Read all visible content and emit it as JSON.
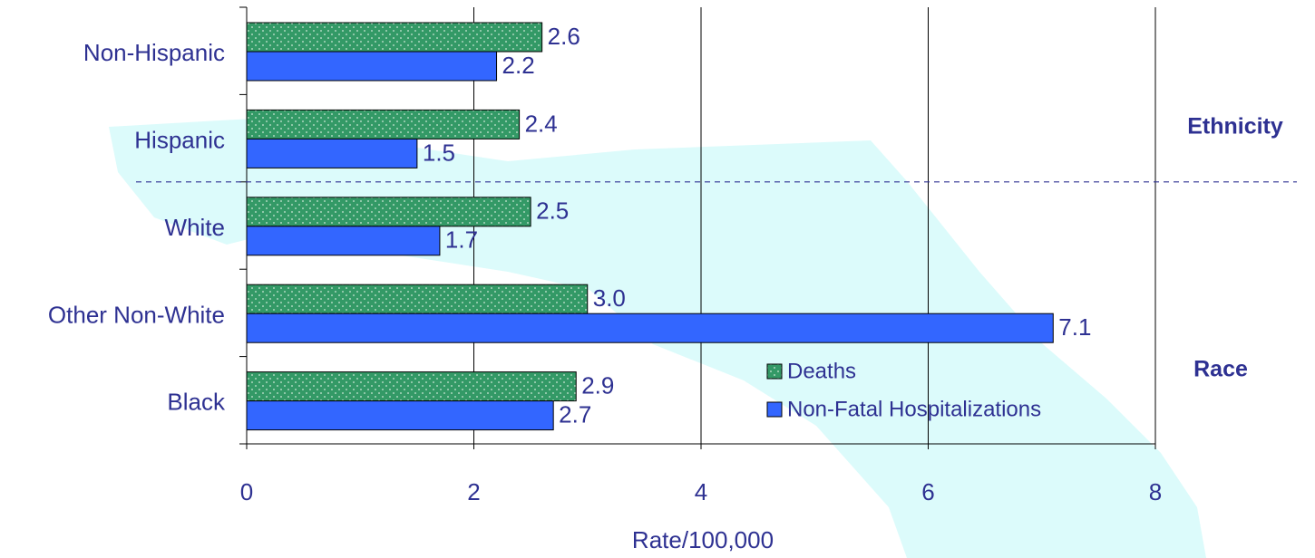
{
  "chart_data": {
    "type": "bar",
    "orientation": "horizontal",
    "categories": [
      "Non-Hispanic",
      "Hispanic",
      "White",
      "Other Non-White",
      "Black"
    ],
    "series": [
      {
        "name": "Deaths",
        "color": "#339966",
        "values": [
          2.6,
          2.4,
          2.5,
          3.0,
          2.9
        ],
        "value_labels": [
          "2.6",
          "2.4",
          "2.5",
          "3.0",
          "2.9"
        ]
      },
      {
        "name": "Non-Fatal Hospitalizations",
        "color": "#3366ff",
        "values": [
          2.2,
          1.5,
          1.7,
          7.1,
          2.7
        ],
        "value_labels": [
          "2.2",
          "1.5",
          "1.7",
          "7.1",
          "2.7"
        ]
      }
    ],
    "annotations": [
      "Ethnicity",
      "Race"
    ],
    "xlabel": "Rate/100,000",
    "xlim": [
      0,
      8
    ],
    "xticks": [
      0,
      2,
      4,
      6,
      8
    ],
    "grid": true,
    "legend": "lower right"
  }
}
